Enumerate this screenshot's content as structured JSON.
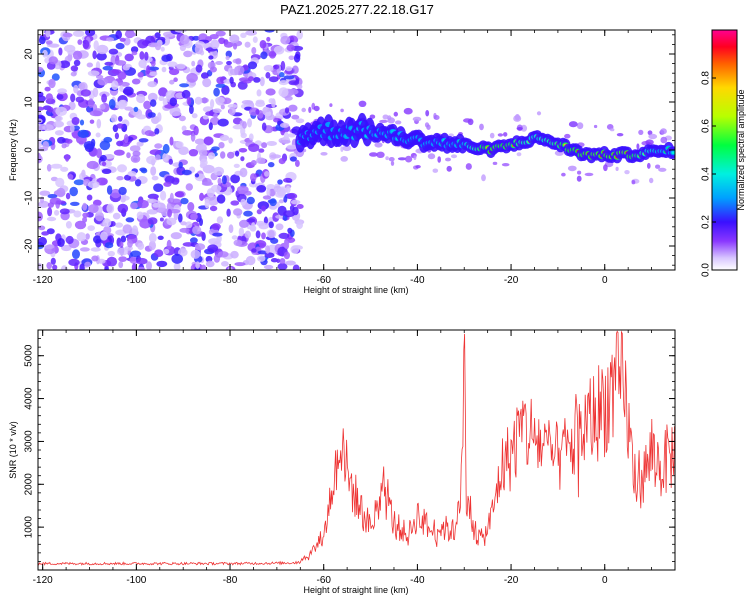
{
  "title": "PAZ1.2025.277.22.18.G17",
  "colors": {
    "snr_line": "#ee3333",
    "frame": "#000000",
    "background": "#ffffff"
  },
  "chart_data": [
    {
      "id": "spectrogram",
      "type": "heatmap",
      "xlabel": "Height of straight line (km)",
      "ylabel": "Frequency (Hz)",
      "xlim": [
        -121,
        15
      ],
      "ylim": [
        -25,
        25
      ],
      "xticks": [
        -120,
        -100,
        -80,
        -60,
        -40,
        -20,
        0
      ],
      "xtick_labels": [
        "-120",
        "-100",
        "-80",
        "-60",
        "-40",
        "-20",
        "0"
      ],
      "yticks": [
        -20,
        -10,
        0,
        10,
        20
      ],
      "ytick_labels": [
        "-20",
        "-10",
        "0",
        "10",
        "20"
      ],
      "colorbar": {
        "label": "Normalized spectral amplitude",
        "range": [
          0,
          1
        ],
        "ticks": [
          0.0,
          0.2,
          0.4,
          0.6,
          0.8
        ],
        "tick_labels": [
          "0.0",
          "0.2",
          "0.4",
          "0.6",
          "0.8"
        ]
      },
      "noise_region_x": [
        -121,
        -65
      ],
      "noise_amplitude_range": [
        0.05,
        0.25
      ],
      "signal_trace": {
        "x": [
          -65,
          -60,
          -55,
          -50,
          -45,
          -40,
          -35,
          -30,
          -25,
          -20,
          -15,
          -12,
          -8,
          -4,
          0,
          5,
          10,
          15
        ],
        "freq": [
          3,
          4,
          4,
          4,
          3,
          2,
          1.5,
          1,
          0,
          1,
          2.5,
          2,
          0.5,
          -1,
          -1,
          -1,
          -0.5,
          0
        ],
        "amplitude": [
          0.15,
          0.3,
          0.35,
          0.4,
          0.4,
          0.4,
          0.45,
          0.5,
          0.9,
          0.85,
          0.6,
          0.7,
          0.85,
          0.9,
          0.9,
          0.92,
          0.6,
          0.45
        ]
      }
    },
    {
      "id": "snr",
      "type": "line",
      "xlabel": "Height of straight line (km)",
      "ylabel": "SNR (10 * v/v)",
      "xlim": [
        -121,
        15
      ],
      "ylim": [
        0,
        5600
      ],
      "xticks": [
        -120,
        -100,
        -80,
        -60,
        -40,
        -20,
        0
      ],
      "xtick_labels": [
        "-120",
        "-100",
        "-80",
        "-60",
        "-40",
        "-20",
        "0"
      ],
      "yticks": [
        1000,
        2000,
        3000,
        4000,
        5000
      ],
      "ytick_labels": [
        "1000",
        "2000",
        "3000",
        "4000",
        "5000"
      ],
      "series": [
        {
          "name": "SNR",
          "x": [
            -121,
            -110,
            -100,
            -90,
            -80,
            -70,
            -66,
            -63,
            -60,
            -58,
            -56,
            -55,
            -52,
            -50,
            -47,
            -45,
            -42,
            -40,
            -37,
            -35,
            -32,
            -30.3,
            -30,
            -29.6,
            -28,
            -26,
            -24,
            -22,
            -20,
            -18,
            -16,
            -14,
            -12,
            -10,
            -8,
            -6,
            -4,
            -2,
            0,
            2,
            4,
            5,
            6,
            8,
            10,
            12,
            15
          ],
          "y": [
            150,
            150,
            150,
            150,
            150,
            160,
            170,
            350,
            800,
            2000,
            3300,
            2200,
            1400,
            1000,
            1800,
            1100,
            800,
            1300,
            900,
            1000,
            900,
            2500,
            5600,
            2000,
            900,
            700,
            1300,
            2400,
            2700,
            3300,
            3200,
            3000,
            2700,
            2600,
            2800,
            3000,
            3400,
            3600,
            3900,
            4200,
            4300,
            3500,
            2300,
            2100,
            2700,
            2400,
            2800
          ]
        }
      ]
    }
  ]
}
